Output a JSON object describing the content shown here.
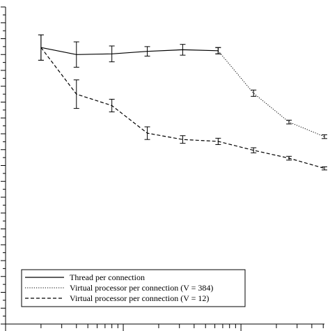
{
  "chart_data": {
    "type": "line",
    "x_scale": "log",
    "xlim": [
      1,
      512
    ],
    "ylim": [
      0,
      1.0
    ],
    "x": [
      2,
      4,
      8,
      16,
      32,
      64,
      128,
      256,
      512
    ],
    "series": [
      {
        "name": "Thread per connection",
        "style": "solid",
        "x": [
          2,
          4,
          8,
          16,
          32,
          64
        ],
        "values": [
          0.872,
          0.85,
          0.852,
          0.86,
          0.865,
          0.862
        ],
        "error": [
          0.04,
          0.04,
          0.025,
          0.015,
          0.017,
          0.01
        ]
      },
      {
        "name": "Virtual processor per connection (V = 384)",
        "style": "dotted",
        "x": [
          64,
          128,
          256,
          512
        ],
        "values": [
          0.862,
          0.728,
          0.637,
          0.591
        ],
        "error": [
          0.01,
          0.01,
          0.006,
          0.006
        ]
      },
      {
        "name": "Virtual processor per connection (V = 12)",
        "style": "dashed",
        "x": [
          2,
          4,
          8,
          16,
          32,
          64,
          128,
          256,
          512
        ],
        "values": [
          0.872,
          0.725,
          0.689,
          0.602,
          0.582,
          0.576,
          0.548,
          0.523,
          0.491
        ],
        "error": [
          0.04,
          0.045,
          0.02,
          0.02,
          0.012,
          0.01,
          0.008,
          0.006,
          0.005
        ]
      }
    ],
    "legend_position": "bottom-left",
    "grid": false
  }
}
